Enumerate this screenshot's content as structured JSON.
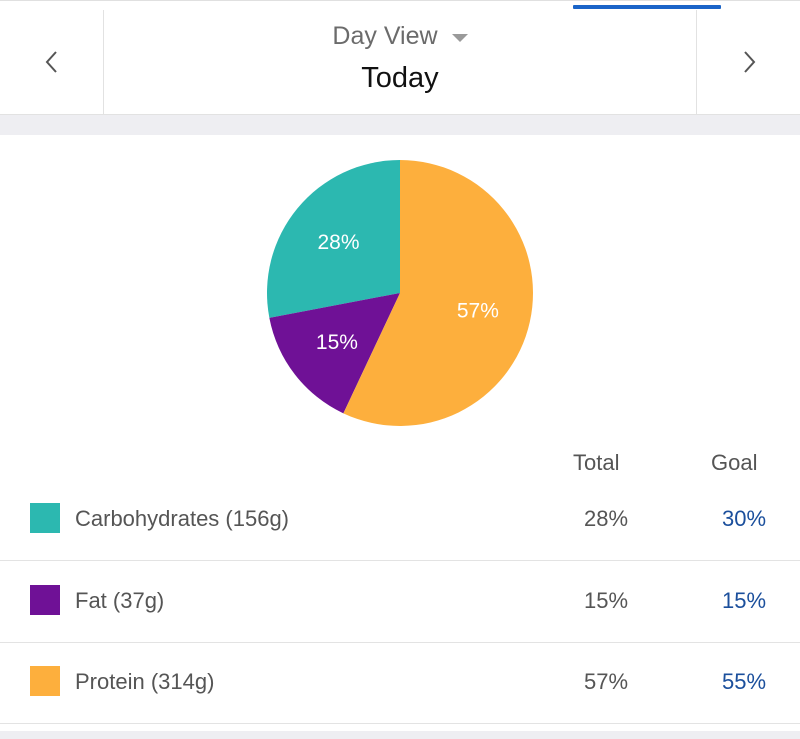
{
  "header": {
    "view_label": "Day View",
    "date_title": "Today",
    "prev_icon": "chevron-left-icon",
    "next_icon": "chevron-right-icon",
    "dropdown_icon": "caret-down-icon"
  },
  "chart_data": {
    "type": "pie",
    "slices": [
      {
        "label": "Carbohydrates",
        "value": 28,
        "color": "#2cb8b0",
        "label_text": "28%"
      },
      {
        "label": "Fat",
        "value": 15,
        "color": "#6f1196",
        "label_text": "15%"
      },
      {
        "label": "Protein",
        "value": 57,
        "color": "#fdaf3d",
        "label_text": "57%"
      }
    ]
  },
  "table": {
    "total_header": "Total",
    "goal_header": "Goal",
    "rows": [
      {
        "label": "Carbohydrates (156g)",
        "total": "28%",
        "goal": "30%",
        "color": "#2cb8b0"
      },
      {
        "label": "Fat (37g)",
        "total": "15%",
        "goal": "15%",
        "color": "#6f1196"
      },
      {
        "label": "Protein (314g)",
        "total": "57%",
        "goal": "55%",
        "color": "#fdaf3d"
      }
    ]
  },
  "colors": {
    "accent": "#1a64c8",
    "goal_text": "#1b4f9c"
  }
}
